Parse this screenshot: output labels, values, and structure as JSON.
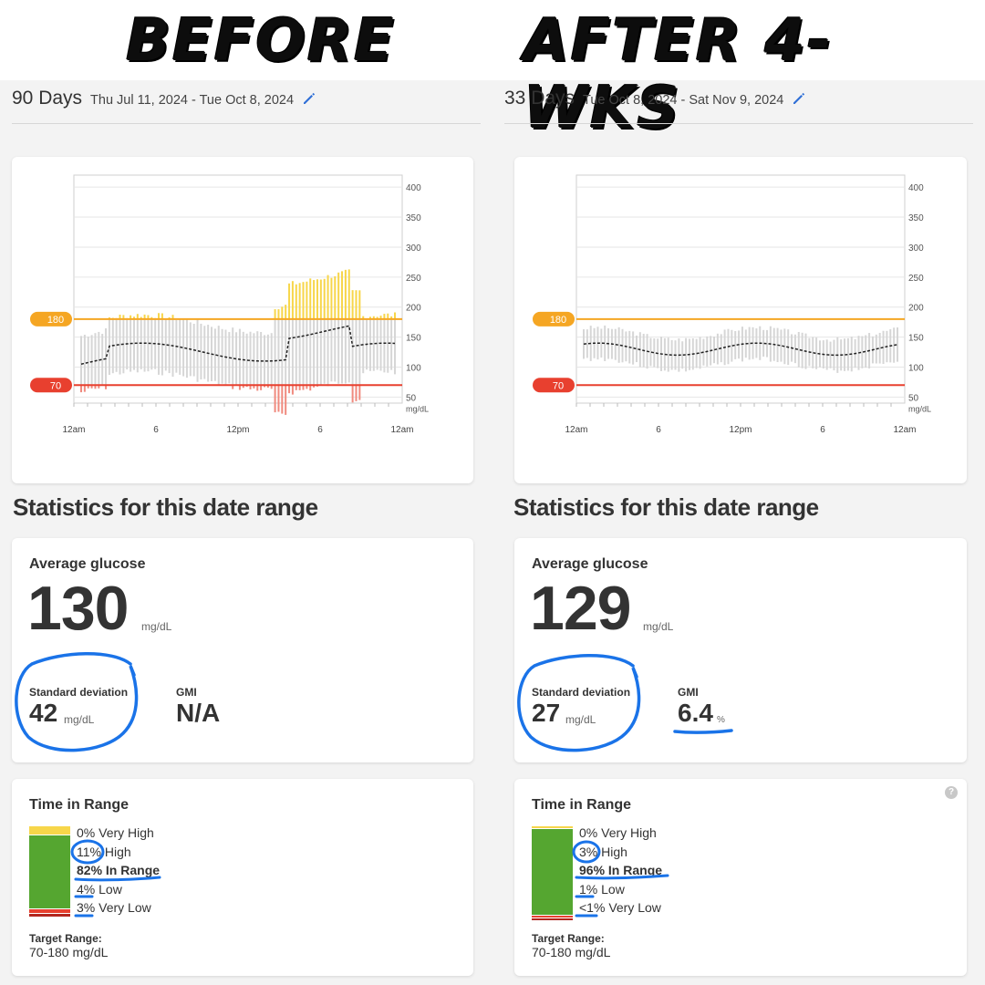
{
  "labels": {
    "before": "BEFORE",
    "after": "AFTER 4-WKS"
  },
  "colors": {
    "high_line": "#f5a623",
    "low_line": "#e8402f",
    "very_high": "#f7d64a",
    "high": "#f2c84b",
    "in_range": "#55a630",
    "low": "#e8402f",
    "very_low": "#b3261e",
    "annotation_blue": "#1a73e8",
    "pencil_blue": "#2f6fd6"
  },
  "panels": [
    {
      "id": "before",
      "days": "90 Days",
      "date_range": "Thu Jul 11, 2024 - Tue Oct 8, 2024",
      "pencil_icon": "edit-pencil-icon",
      "chart": {
        "y_ticks": [
          "400",
          "350",
          "300",
          "250",
          "200",
          "150",
          "100",
          "50"
        ],
        "y_unit": "mg/dL",
        "x_ticks": [
          "12am",
          "6",
          "12pm",
          "6",
          "12am"
        ],
        "high_label": "180",
        "low_label": "70"
      },
      "section_title": "Statistics for this date range",
      "avg_label": "Average glucose",
      "avg_value": "130",
      "avg_unit": "mg/dL",
      "sd_label": "Standard deviation",
      "sd_value": "42",
      "sd_unit": "mg/dL",
      "gmi_label": "GMI",
      "gmi_value": "N/A",
      "gmi_unit": "",
      "tir_label": "Time in Range",
      "tir": {
        "very_high_pct": "0%",
        "very_high_label": "Very High",
        "high_pct": "11%",
        "high_label": "High",
        "in_range_pct": "82%",
        "in_range_label": "In Range",
        "low_pct": "4%",
        "low_label": "Low",
        "very_low_pct": "3%",
        "very_low_label": "Very Low"
      },
      "tir_fractions": {
        "very_high": 0.0,
        "high": 0.11,
        "in_range": 0.82,
        "low": 0.04,
        "very_low": 0.03
      },
      "target_label": "Target Range:",
      "target_value": "70-180 mg/dL"
    },
    {
      "id": "after",
      "days": "33 Days",
      "date_range": "Tue Oct 8, 2024 - Sat Nov 9, 2024",
      "pencil_icon": "edit-pencil-icon",
      "chart": {
        "y_ticks": [
          "400",
          "350",
          "300",
          "250",
          "200",
          "150",
          "100",
          "50"
        ],
        "y_unit": "mg/dL",
        "x_ticks": [
          "12am",
          "6",
          "12pm",
          "6",
          "12am"
        ],
        "high_label": "180",
        "low_label": "70"
      },
      "section_title": "Statistics for this date range",
      "avg_label": "Average glucose",
      "avg_value": "129",
      "avg_unit": "mg/dL",
      "sd_label": "Standard deviation",
      "sd_value": "27",
      "sd_unit": "mg/dL",
      "gmi_label": "GMI",
      "gmi_value": "6.4",
      "gmi_unit": "%",
      "tir_label": "Time in Range",
      "tir": {
        "very_high_pct": "0%",
        "very_high_label": "Very High",
        "high_pct": "3%",
        "high_label": "High",
        "in_range_pct": "96%",
        "in_range_label": "In Range",
        "low_pct": "1%",
        "low_label": "Low",
        "very_low_pct": "<1%",
        "very_low_label": "Very Low"
      },
      "tir_fractions": {
        "very_high": 0.0,
        "high": 0.03,
        "in_range": 0.96,
        "low": 0.01,
        "very_low": 0.005
      },
      "target_label": "Target Range:",
      "target_value": "70-180 mg/dL",
      "help_icon": "?"
    }
  ]
}
